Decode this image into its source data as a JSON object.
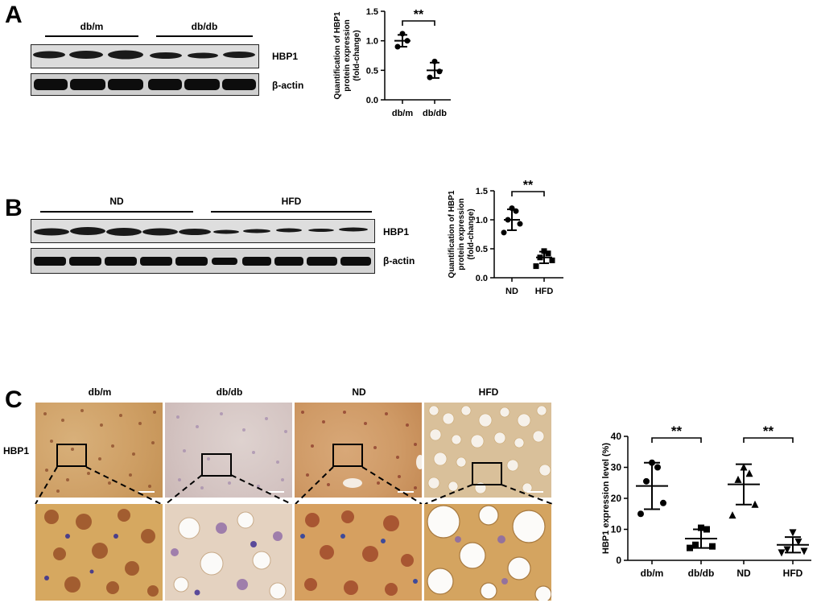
{
  "panels": {
    "a": "A",
    "b": "B",
    "c": "C"
  },
  "panel_a": {
    "groups": [
      "db/m",
      "db/db"
    ],
    "blots": [
      "HBP1",
      "β-actin"
    ]
  },
  "panel_b": {
    "groups": [
      "ND",
      "HFD"
    ],
    "blots": [
      "HBP1",
      "β-actin"
    ]
  },
  "panel_c": {
    "columns": [
      "db/m",
      "db/db",
      "ND",
      "HFD"
    ],
    "row_label": "HBP1"
  },
  "chart_data": [
    {
      "type": "scatter",
      "ylabel": "Quantification of HBP1 protein expression (fold-change)",
      "ylabel_lines": [
        "Quantification of HBP1",
        "protein expression",
        "(fold-change)"
      ],
      "categories": [
        "db/m",
        "db/db"
      ],
      "ylim": [
        0,
        1.5
      ],
      "yticks": [
        "0.0",
        "0.5",
        "1.0",
        "1.5"
      ],
      "points": [
        [
          1.12,
          1.0,
          0.9
        ],
        [
          0.65,
          0.48,
          0.38
        ]
      ],
      "means": [
        1.0,
        0.5
      ],
      "sd": [
        0.1,
        0.13
      ],
      "significance": "**",
      "marker": "circle"
    },
    {
      "type": "scatter",
      "ylabel": "Quantification of HBP1 protein expression (fold-change)",
      "ylabel_lines": [
        "Quantification of HBP1",
        "protein expression",
        "(fold-change)"
      ],
      "categories": [
        "ND",
        "HFD"
      ],
      "ylim": [
        0,
        1.5
      ],
      "yticks": [
        "0.0",
        "0.5",
        "1.0",
        "1.5"
      ],
      "points": [
        [
          1.2,
          1.15,
          1.0,
          0.93,
          0.78
        ],
        [
          0.46,
          0.42,
          0.35,
          0.3,
          0.2
        ]
      ],
      "means": [
        1.0,
        0.35
      ],
      "sd": [
        0.18,
        0.1
      ],
      "significance": "**",
      "marker": "mixed"
    },
    {
      "type": "scatter",
      "ylabel": "HBP1 expression level (%)",
      "categories": [
        "db/m",
        "db/db",
        "ND",
        "HFD"
      ],
      "ylim": [
        0,
        40
      ],
      "yticks": [
        "0",
        "10",
        "20",
        "30",
        "40"
      ],
      "points": [
        [
          31.5,
          30,
          25.5,
          18.5,
          15
        ],
        [
          10.5,
          10,
          5,
          4.5,
          4
        ],
        [
          30,
          28,
          26,
          18,
          14.5
        ],
        [
          9,
          6,
          3.5,
          3,
          2.5
        ]
      ],
      "means": [
        24,
        7,
        24.5,
        5
      ],
      "sd": [
        7.5,
        3,
        6.5,
        2.5
      ],
      "significance": [
        "**",
        "**"
      ],
      "markers": [
        "circle",
        "square",
        "triangle",
        "down-triangle"
      ]
    }
  ]
}
